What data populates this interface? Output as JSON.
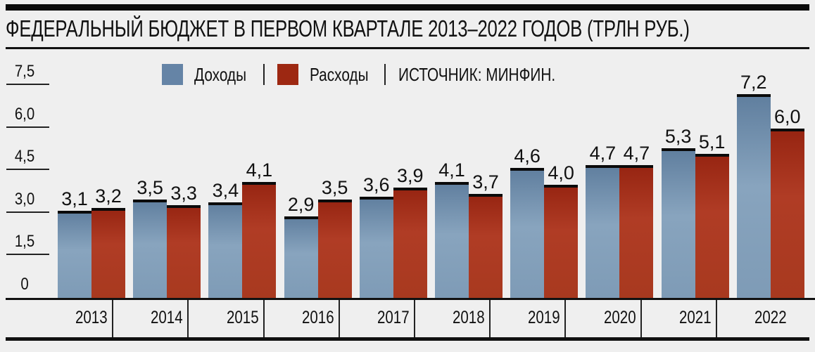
{
  "title": "ФЕДЕРАЛЬНЫЙ БЮДЖЕТ В ПЕРВОМ КВАРТАЛЕ 2013–2022 ГОДОВ (ТРЛН РУБ.)",
  "legend": {
    "income_label": "Доходы",
    "expense_label": "Расходы",
    "source": "ИСТОЧНИК: МИНФИН."
  },
  "colors": {
    "income": "#6f8fae",
    "expense": "#a4321c",
    "background": "#efefef"
  },
  "yaxis": {
    "ticks": [
      "7,5",
      "6,0",
      "4,5",
      "3,0",
      "1,5",
      "0"
    ]
  },
  "chart_data": {
    "type": "bar",
    "title": "ФЕДЕРАЛЬНЫЙ БЮДЖЕТ В ПЕРВОМ КВАРТАЛЕ 2013–2022 ГОДОВ (ТРЛН РУБ.)",
    "xlabel": "",
    "ylabel": "трлн руб.",
    "ylim": [
      0,
      7.5
    ],
    "yticks": [
      0,
      1.5,
      3.0,
      4.5,
      6.0,
      7.5
    ],
    "legend_position": "top",
    "grid": false,
    "categories": [
      "2013",
      "2014",
      "2015",
      "2016",
      "2017",
      "2018",
      "2019",
      "2020",
      "2021",
      "2022"
    ],
    "series": [
      {
        "name": "Доходы",
        "color": "#6f8fae",
        "values": [
          3.1,
          3.5,
          3.4,
          2.9,
          3.6,
          4.1,
          4.6,
          4.7,
          5.3,
          7.2
        ]
      },
      {
        "name": "Расходы",
        "color": "#a4321c",
        "values": [
          3.2,
          3.3,
          4.1,
          3.5,
          3.9,
          3.7,
          4.0,
          4.7,
          5.1,
          6.0
        ]
      }
    ],
    "value_labels": {
      "Доходы": [
        "3,1",
        "3,5",
        "3,4",
        "2,9",
        "3,6",
        "4,1",
        "4,6",
        "4,7",
        "5,3",
        "7,2"
      ],
      "Расходы": [
        "3,2",
        "3,3",
        "4,1",
        "3,5",
        "3,9",
        "3,7",
        "4,0",
        "4,7",
        "5,1",
        "6,0"
      ]
    },
    "annotations": [
      "ИСТОЧНИК: МИНФИН."
    ]
  }
}
